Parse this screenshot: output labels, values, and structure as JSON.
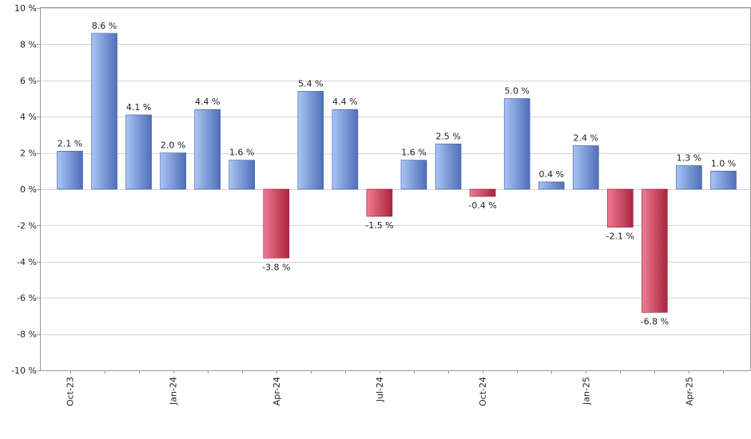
{
  "chart_data": {
    "type": "bar",
    "title": "",
    "xlabel": "",
    "ylabel": "",
    "ylim": [
      -10,
      10
    ],
    "y_ticks": [
      10,
      8,
      6,
      4,
      2,
      0,
      -2,
      -4,
      -6,
      -8,
      -10
    ],
    "y_tick_labels": [
      "10 %",
      "8 %",
      "6 %",
      "4 %",
      "2 %",
      "0 %",
      "-2 %",
      "-4 %",
      "-6 %",
      "-8 %",
      "-10 %"
    ],
    "grid": true,
    "categories": [
      "Oct-23",
      "Nov-23",
      "Dec-23",
      "Jan-24",
      "Feb-24",
      "Mar-24",
      "Apr-24",
      "May-24",
      "Jun-24",
      "Jul-24",
      "Aug-24",
      "Sep-24",
      "Oct-24",
      "Nov-24",
      "Dec-24",
      "Jan-25",
      "Feb-25",
      "Mar-25",
      "Apr-25",
      "May-25"
    ],
    "x_tick_labels": [
      "Oct-23",
      "Jan-24",
      "Apr-24",
      "Jul-24",
      "Oct-24",
      "Jan-25",
      "Apr-25"
    ],
    "values": [
      2.1,
      8.6,
      4.1,
      2.0,
      4.4,
      1.6,
      -3.8,
      5.4,
      4.4,
      -1.5,
      1.6,
      2.5,
      -0.4,
      5.0,
      0.4,
      2.4,
      -2.1,
      -6.8,
      1.3,
      1.0
    ],
    "value_labels": [
      "2.1 %",
      "8.6 %",
      "4.1 %",
      "2.0 %",
      "4.4 %",
      "1.6 %",
      "-3.8 %",
      "5.4 %",
      "4.4 %",
      "-1.5 %",
      "1.6 %",
      "2.5 %",
      "-0.4 %",
      "5.0 %",
      "0.4 %",
      "2.4 %",
      "-2.1 %",
      "-6.8 %",
      "1.3 %",
      "1.0 %"
    ],
    "colors": {
      "positive_light": "#a9c4f5",
      "positive_dark": "#4f6fb8",
      "negative_light": "#f07c94",
      "negative_dark": "#a8243f"
    }
  }
}
